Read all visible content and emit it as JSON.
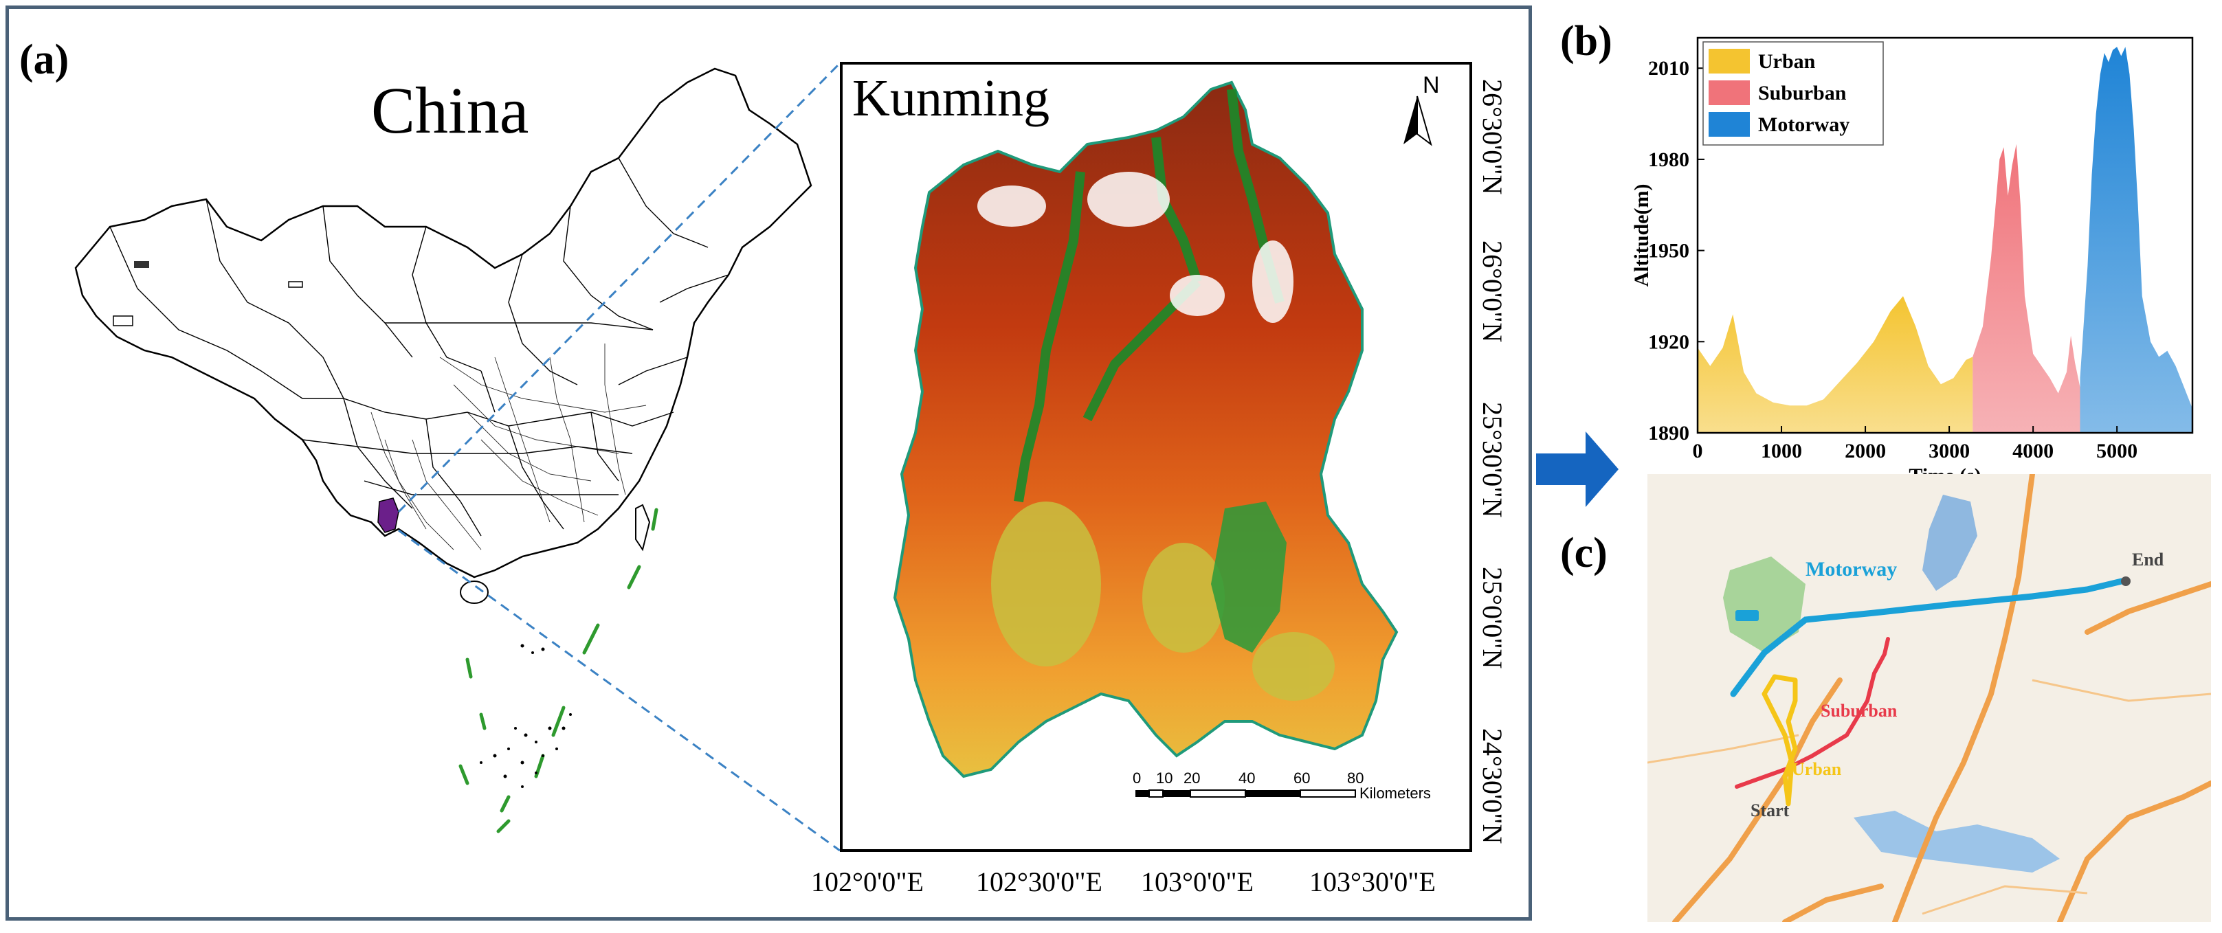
{
  "panel_a": {
    "letter": "(a)",
    "china_title": "China",
    "inset_title": "Kunming",
    "north_label": "N",
    "lat_labels": [
      "26°30'0\"N",
      "26°0'0\"N",
      "25°30'0\"N",
      "25°0'0\"N",
      "24°30'0\"N"
    ],
    "lon_labels": [
      "102°0'0\"E",
      "102°30'0\"E",
      "103°0'0\"E",
      "103°30'0\"E"
    ],
    "scale_ticks": [
      "0",
      "10",
      "20",
      "40",
      "60",
      "80"
    ],
    "scale_unit": "Kilometers"
  },
  "panel_b": {
    "letter": "(b)",
    "chart_data": {
      "type": "area",
      "xlabel": "Time (s)",
      "ylabel": "Altitude(m)",
      "xlim": [
        0,
        5900
      ],
      "ylim": [
        1890,
        2020
      ],
      "xticks": [
        0,
        1000,
        2000,
        3000,
        4000,
        5000
      ],
      "yticks": [
        1890,
        1920,
        1950,
        1980,
        2010
      ],
      "legend_position": "top-left",
      "series": [
        {
          "name": "Urban",
          "color": "#f4c430",
          "x": [
            0,
            150,
            300,
            420,
            550,
            700,
            900,
            1100,
            1300,
            1500,
            1700,
            1900,
            2100,
            2300,
            2450,
            2600,
            2750,
            2900,
            3050,
            3200,
            3280
          ],
          "y": [
            1918,
            1912,
            1918,
            1929,
            1910,
            1903,
            1900,
            1899,
            1899,
            1901,
            1907,
            1913,
            1920,
            1930,
            1935,
            1925,
            1912,
            1906,
            1908,
            1914,
            1915
          ]
        },
        {
          "name": "Suburban",
          "color": "#f0737a",
          "x": [
            3280,
            3400,
            3500,
            3600,
            3650,
            3700,
            3750,
            3800,
            3850,
            3900,
            4000,
            4100,
            4200,
            4300,
            4400,
            4450,
            4500,
            4560
          ],
          "y": [
            1915,
            1925,
            1948,
            1980,
            1984,
            1968,
            1978,
            1985,
            1965,
            1935,
            1916,
            1912,
            1908,
            1903,
            1910,
            1922,
            1913,
            1905
          ]
        },
        {
          "name": "Motorway",
          "color": "#1f84d6",
          "x": [
            4560,
            4650,
            4700,
            4750,
            4800,
            4850,
            4900,
            4950,
            5000,
            5050,
            5100,
            5150,
            5200,
            5250,
            5300,
            5400,
            5500,
            5600,
            5700,
            5800,
            5900
          ],
          "y": [
            1908,
            1945,
            1975,
            1995,
            2008,
            2015,
            2012,
            2016,
            2017,
            2014,
            2017,
            2008,
            1990,
            1965,
            1935,
            1920,
            1915,
            1917,
            1912,
            1905,
            1898
          ]
        }
      ]
    }
  },
  "panel_c": {
    "letter": "(c)",
    "route_labels": {
      "motorway": "Motorway",
      "suburban": "Suburban",
      "urban": "Urban",
      "start": "Start",
      "end": "End"
    },
    "colors": {
      "motorway": "#1aa1d8",
      "suburban": "#e83a4a",
      "urban": "#f5c518",
      "road": "#f0a04a",
      "water": "#8fb8e0"
    }
  },
  "colors": {
    "frame": "#4a6178",
    "dashed_line": "#3b82c4",
    "arrow": "#1565c0"
  }
}
